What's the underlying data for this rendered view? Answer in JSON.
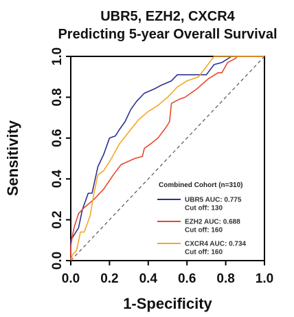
{
  "chart_data": {
    "type": "line",
    "title": "UBR5, EZH2, CXCR4",
    "subtitle": "Predicting 5-year Overall Survival",
    "xlabel": "1-Specificity",
    "ylabel": "Sensitivity",
    "xlim": [
      0,
      1
    ],
    "ylim": [
      0,
      1
    ],
    "xticks": [
      "0.0",
      "0.2",
      "0.4",
      "0.6",
      "0.8",
      "1.0"
    ],
    "yticks": [
      "0.0",
      "0.2",
      "0.4",
      "0.6",
      "0.8",
      "1.0"
    ],
    "grid": false,
    "legend_position": "bottom-right",
    "legend_title": "Combined Cohort (n=310)",
    "reference_line": "diagonal",
    "series": [
      {
        "name": "UBR5",
        "auc_label": "UBR5 AUC: 0.775",
        "cutoff_label": "Cut off: 130",
        "color": "#2b2f8f",
        "points": [
          [
            0,
            0
          ],
          [
            0,
            0.1
          ],
          [
            0.02,
            0.13
          ],
          [
            0.04,
            0.16
          ],
          [
            0.06,
            0.25
          ],
          [
            0.09,
            0.33
          ],
          [
            0.11,
            0.33
          ],
          [
            0.14,
            0.46
          ],
          [
            0.17,
            0.52
          ],
          [
            0.2,
            0.6
          ],
          [
            0.23,
            0.61
          ],
          [
            0.25,
            0.64
          ],
          [
            0.28,
            0.68
          ],
          [
            0.31,
            0.74
          ],
          [
            0.34,
            0.78
          ],
          [
            0.38,
            0.82
          ],
          [
            0.43,
            0.84
          ],
          [
            0.47,
            0.86
          ],
          [
            0.52,
            0.88
          ],
          [
            0.55,
            0.91
          ],
          [
            0.7,
            0.91
          ],
          [
            0.74,
            0.96
          ],
          [
            0.78,
            0.97
          ],
          [
            0.83,
            1.0
          ],
          [
            1,
            1
          ]
        ]
      },
      {
        "name": "EZH2",
        "auc_label": "EZH2 AUC: 0.688",
        "cutoff_label": "Cut off: 160",
        "color": "#e8452c",
        "points": [
          [
            0,
            0
          ],
          [
            0,
            0.07
          ],
          [
            0.01,
            0.13
          ],
          [
            0.02,
            0.17
          ],
          [
            0.04,
            0.23
          ],
          [
            0.07,
            0.26
          ],
          [
            0.12,
            0.3
          ],
          [
            0.17,
            0.35
          ],
          [
            0.22,
            0.42
          ],
          [
            0.26,
            0.47
          ],
          [
            0.33,
            0.5
          ],
          [
            0.37,
            0.51
          ],
          [
            0.38,
            0.55
          ],
          [
            0.41,
            0.57
          ],
          [
            0.45,
            0.6
          ],
          [
            0.49,
            0.65
          ],
          [
            0.51,
            0.68
          ],
          [
            0.52,
            0.77
          ],
          [
            0.56,
            0.79
          ],
          [
            0.59,
            0.8
          ],
          [
            0.65,
            0.84
          ],
          [
            0.71,
            0.89
          ],
          [
            0.76,
            0.92
          ],
          [
            0.78,
            0.92
          ],
          [
            0.81,
            0.97
          ],
          [
            0.85,
            0.99
          ],
          [
            0.86,
            1.0
          ],
          [
            1,
            1
          ]
        ]
      },
      {
        "name": "CXCR4",
        "auc_label": "CXCR4 AUC: 0.734",
        "cutoff_label": "Cut off: 160",
        "color": "#f5a623",
        "points": [
          [
            0,
            0
          ],
          [
            0.01,
            0.03
          ],
          [
            0.03,
            0.05
          ],
          [
            0.05,
            0.14
          ],
          [
            0.07,
            0.14
          ],
          [
            0.1,
            0.22
          ],
          [
            0.12,
            0.33
          ],
          [
            0.14,
            0.42
          ],
          [
            0.17,
            0.44
          ],
          [
            0.21,
            0.5
          ],
          [
            0.25,
            0.57
          ],
          [
            0.3,
            0.63
          ],
          [
            0.35,
            0.69
          ],
          [
            0.4,
            0.73
          ],
          [
            0.45,
            0.76
          ],
          [
            0.5,
            0.8
          ],
          [
            0.55,
            0.85
          ],
          [
            0.6,
            0.88
          ],
          [
            0.66,
            0.9
          ],
          [
            0.7,
            0.95
          ],
          [
            0.74,
            1.0
          ],
          [
            1,
            1
          ]
        ]
      }
    ]
  }
}
